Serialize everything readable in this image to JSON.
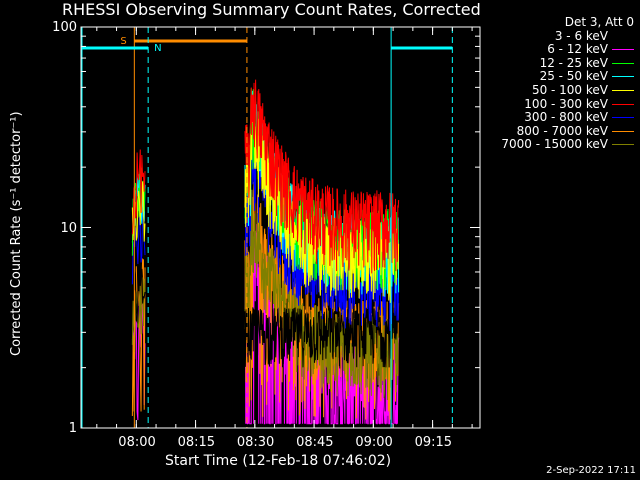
{
  "chart_data": {
    "type": "line",
    "title": "RHESSI Observing Summary Count Rates, Corrected",
    "xlabel": "Start Time (12-Feb-18 07:46:02)",
    "ylabel": "Corrected Count Rate (s⁻¹ detector⁻¹)",
    "yscale": "log",
    "ylim": [
      1,
      100
    ],
    "xlim": [
      "07:46",
      "09:27"
    ],
    "xticks": [
      "08:00",
      "08:15",
      "08:30",
      "08:45",
      "09:00",
      "09:15"
    ],
    "yticks": [
      "1",
      "10",
      "100"
    ],
    "legend_header": "Det 3, Att 0",
    "legend_position": "outside-right",
    "series": [
      {
        "name": "3 - 6 keV",
        "color": "#000000",
        "level": 3.2
      },
      {
        "name": "6 - 12 keV",
        "color": "#ff00ff",
        "level": 2.0
      },
      {
        "name": "12 - 25 keV",
        "color": "#00ff00",
        "level": 8.5
      },
      {
        "name": "25 - 50 keV",
        "color": "#00ffff",
        "level": 8.0
      },
      {
        "name": "50 - 100 keV",
        "color": "#ffff00",
        "level": 7.5
      },
      {
        "name": "100 - 300 keV",
        "color": "#ff0000",
        "level": 10.5
      },
      {
        "name": "300 - 800 keV",
        "color": "#0000ff",
        "level": 5.5
      },
      {
        "name": "800 - 7000 keV",
        "color": "#ff8c00",
        "level": 3.0
      },
      {
        "name": "7000 - 15000 keV",
        "color": "#808000",
        "level": 2.5
      }
    ],
    "annotations": [
      {
        "label": "S",
        "color": "#ff8c00"
      },
      {
        "label": "N",
        "color": "#00ffff"
      }
    ]
  },
  "footer": {
    "date_stamp": "2-Sep-2022 17:11"
  }
}
